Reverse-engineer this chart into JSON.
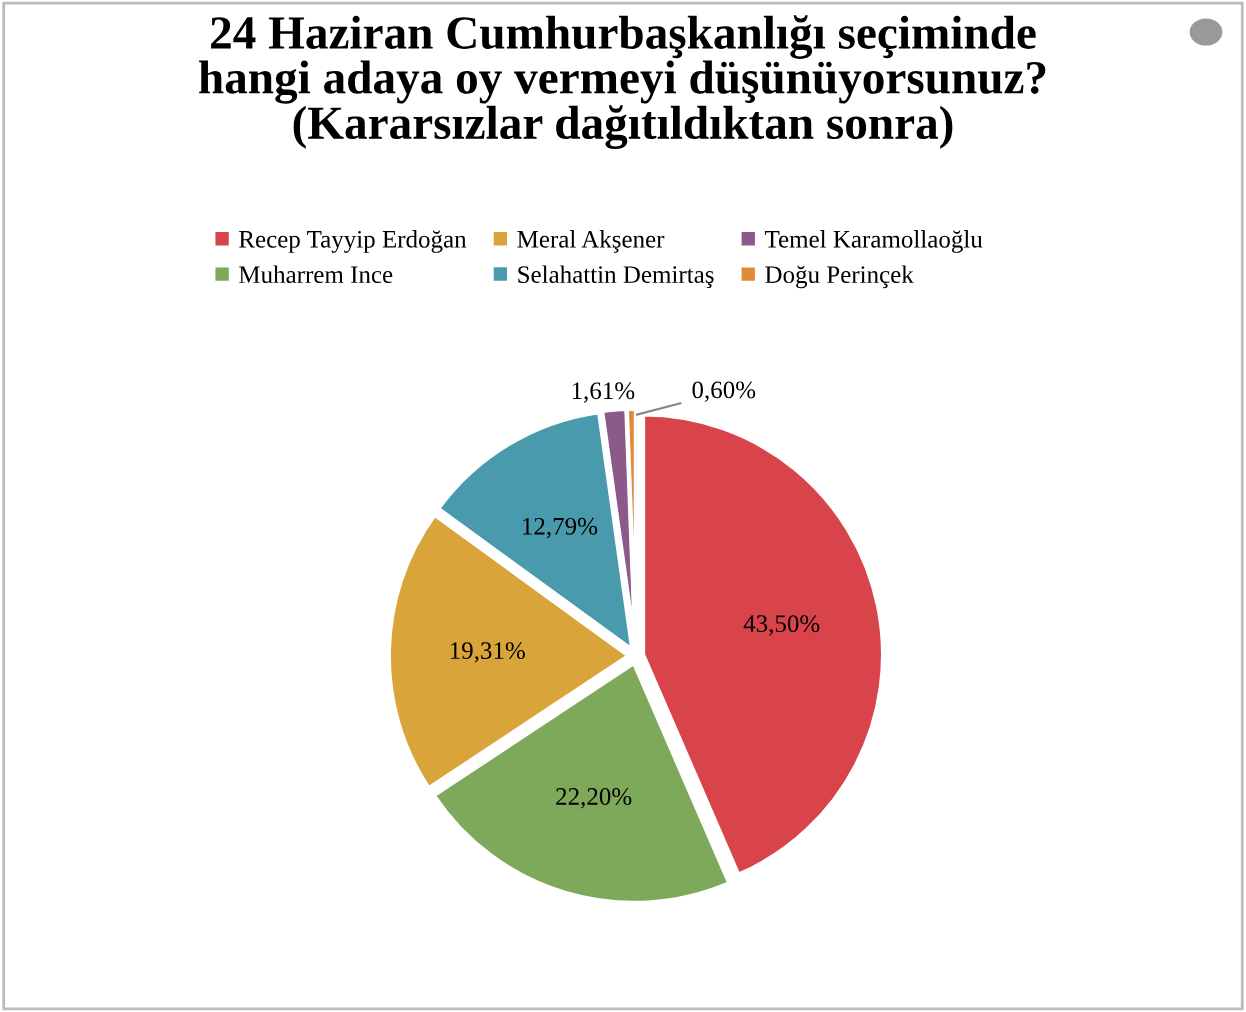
{
  "chart_data": {
    "type": "pie",
    "title": "24 Haziran Cumhurbaşkanlığı seçiminde\nhangi adaya oy vermeyi düşünüyorsunuz?\n(Kararsızlar dağıtıldıktan sonra)",
    "categories": [
      "Recep Tayyip Erdoğan",
      "Muharrem Ince",
      "Meral Akşener",
      "Selahattin Demirtaş",
      "Temel Karamollaoğlu",
      "Doğu Perinçek"
    ],
    "values": [
      43.5,
      22.2,
      19.31,
      12.79,
      1.61,
      0.6
    ],
    "colors": [
      "#d9434a",
      "#7ea85a",
      "#d9a53a",
      "#4a9aad",
      "#8b5a8b",
      "#e08a3a"
    ],
    "value_labels": [
      "43,50%",
      "22,20%",
      "19,31%",
      "12,79%",
      "1,61%",
      "0,60%"
    ],
    "legend": "top"
  }
}
